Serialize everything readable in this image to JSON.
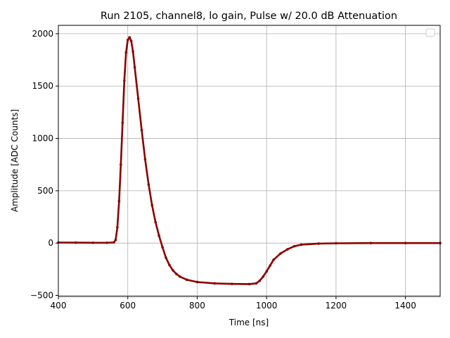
{
  "chart_data": {
    "type": "scatter",
    "title": "Run 2105, channel8, lo gain, Pulse w/ 20.0 dB Attenuation",
    "xlabel": "Time [ns]",
    "ylabel": "Amplitude [ADC Counts]",
    "xlim": [
      400,
      1500
    ],
    "ylim": [
      -510,
      2080
    ],
    "xticks": [
      400,
      600,
      800,
      1000,
      1200,
      1400
    ],
    "yticks": [
      -500,
      0,
      500,
      1000,
      1500,
      2000
    ],
    "xtick_labels": [
      "400",
      "600",
      "800",
      "1000",
      "1200",
      "1400"
    ],
    "ytick_labels": [
      "−500",
      "0",
      "500",
      "1000",
      "1500",
      "2000"
    ],
    "grid": true,
    "legend": "top-right (empty)",
    "series": [
      {
        "color": "#8b0000",
        "points": [
          [
            400,
            5
          ],
          [
            450,
            4
          ],
          [
            500,
            3
          ],
          [
            540,
            3
          ],
          [
            560,
            6
          ],
          [
            565,
            30
          ],
          [
            570,
            150
          ],
          [
            575,
            400
          ],
          [
            580,
            750
          ],
          [
            585,
            1150
          ],
          [
            590,
            1550
          ],
          [
            595,
            1820
          ],
          [
            600,
            1940
          ],
          [
            605,
            1965
          ],
          [
            610,
            1930
          ],
          [
            615,
            1830
          ],
          [
            620,
            1680
          ],
          [
            630,
            1380
          ],
          [
            640,
            1080
          ],
          [
            650,
            800
          ],
          [
            660,
            560
          ],
          [
            670,
            360
          ],
          [
            680,
            200
          ],
          [
            690,
            70
          ],
          [
            700,
            -40
          ],
          [
            710,
            -140
          ],
          [
            720,
            -210
          ],
          [
            730,
            -260
          ],
          [
            740,
            -295
          ],
          [
            750,
            -320
          ],
          [
            770,
            -350
          ],
          [
            800,
            -372
          ],
          [
            850,
            -385
          ],
          [
            900,
            -390
          ],
          [
            950,
            -392
          ],
          [
            970,
            -385
          ],
          [
            980,
            -360
          ],
          [
            990,
            -320
          ],
          [
            1000,
            -270
          ],
          [
            1010,
            -215
          ],
          [
            1020,
            -160
          ],
          [
            1040,
            -100
          ],
          [
            1060,
            -60
          ],
          [
            1080,
            -30
          ],
          [
            1100,
            -15
          ],
          [
            1150,
            -5
          ],
          [
            1200,
            -2
          ],
          [
            1300,
            0
          ],
          [
            1400,
            0
          ],
          [
            1500,
            0
          ]
        ]
      }
    ]
  }
}
